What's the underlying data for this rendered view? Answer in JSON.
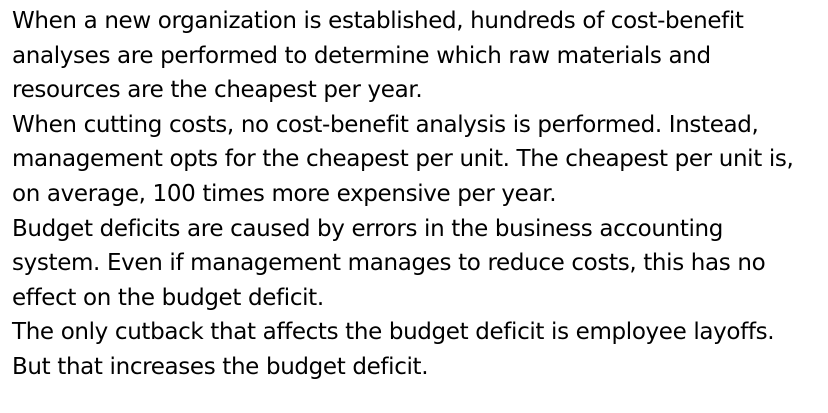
{
  "paragraphs": [
    {
      "lines": [
        "When a new organization is established, hundreds of cost-benefit",
        "analyses are performed to determine which raw materials and",
        "resources are the cheapest per year."
      ]
    },
    {
      "lines": [
        "When cutting costs, no cost-benefit analysis is performed. Instead,",
        "management opts for the cheapest per unit. The cheapest per unit is,",
        "on average, 100 times more expensive per year."
      ]
    },
    {
      "lines": [
        "Budget deficits are caused by errors in the business accounting",
        "system. Even if management manages to reduce costs, this has no",
        "effect on the budget deficit."
      ]
    },
    {
      "lines": [
        "The only cutback that affects the budget deficit is employee layoffs.",
        "But that increases the budget deficit."
      ]
    }
  ]
}
